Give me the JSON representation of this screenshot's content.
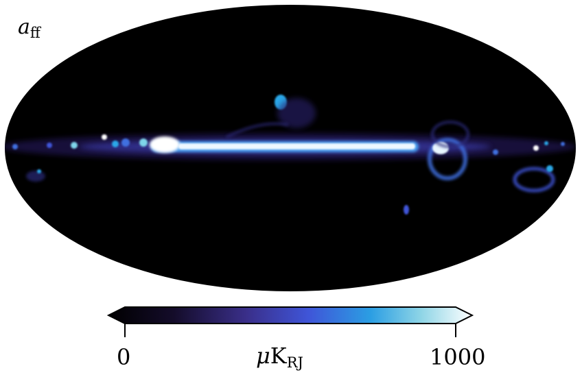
{
  "map": {
    "label_main": "a",
    "label_sub": "ff",
    "background_color": "#000000",
    "emission_colors": [
      "#1a1040",
      "#3b3aa8",
      "#3f6fe0",
      "#2aa7e8",
      "#7fd6ea",
      "#ffffff"
    ]
  },
  "colorbar": {
    "min_label": "0",
    "max_label": "1000",
    "unit_prefix": "μ",
    "unit_main": "K",
    "unit_sub": "RJ",
    "extend": "both",
    "stops": [
      {
        "offset": 0.0,
        "color": "#000000"
      },
      {
        "offset": 0.18,
        "color": "#140c2a"
      },
      {
        "offset": 0.38,
        "color": "#3a2f8a"
      },
      {
        "offset": 0.55,
        "color": "#3f55d8"
      },
      {
        "offset": 0.72,
        "color": "#2b9ee3"
      },
      {
        "offset": 0.86,
        "color": "#8fd5e6"
      },
      {
        "offset": 1.0,
        "color": "#ffffff"
      }
    ]
  }
}
